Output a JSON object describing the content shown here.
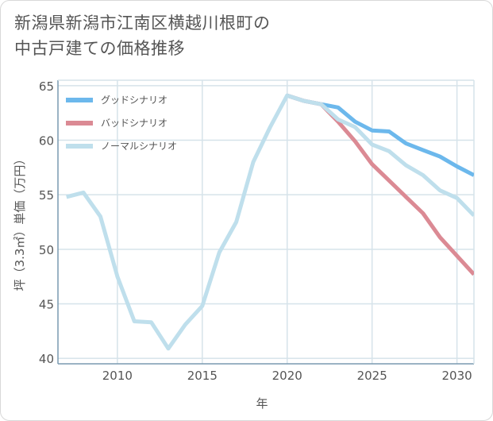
{
  "title": {
    "line1": "新潟県新潟市江南区横越川根町の",
    "line2": "中古戸建ての価格推移"
  },
  "colors": {
    "good": "#6cb8ec",
    "bad": "#db8a94",
    "normal": "#bfdfec",
    "grid": "#d6e3ea",
    "axis": "#7a9ab0",
    "text": "#555555"
  },
  "chart_data": {
    "type": "line",
    "title": "新潟県新潟市江南区横越川根町の中古戸建ての価格推移",
    "xlabel": "年",
    "ylabel": "坪（3.3㎡）単価（万円）",
    "xlim": [
      2006.5,
      2031
    ],
    "ylim": [
      39.5,
      65.5
    ],
    "xticks": [
      2010,
      2015,
      2020,
      2025,
      2030
    ],
    "yticks": [
      40,
      45,
      50,
      55,
      60,
      65
    ],
    "grid": true,
    "legend_position": "top-left",
    "series": [
      {
        "name": "グッドシナリオ",
        "color": "#6cb8ec",
        "points": [
          [
            2020,
            64.1
          ],
          [
            2021,
            63.6
          ],
          [
            2022,
            63.3
          ],
          [
            2023,
            63.0
          ],
          [
            2024,
            61.7
          ],
          [
            2025,
            60.9
          ],
          [
            2026,
            60.8
          ],
          [
            2027,
            59.7
          ],
          [
            2028,
            59.1
          ],
          [
            2029,
            58.5
          ],
          [
            2030,
            57.6
          ],
          [
            2031,
            56.8
          ]
        ]
      },
      {
        "name": "バッドシナリオ",
        "color": "#db8a94",
        "points": [
          [
            2020,
            64.1
          ],
          [
            2021,
            63.6
          ],
          [
            2022,
            63.3
          ],
          [
            2023,
            61.7
          ],
          [
            2024,
            59.9
          ],
          [
            2025,
            57.8
          ],
          [
            2026,
            56.3
          ],
          [
            2027,
            54.8
          ],
          [
            2028,
            53.3
          ],
          [
            2029,
            51.1
          ],
          [
            2030,
            49.4
          ],
          [
            2031,
            47.7
          ]
        ]
      },
      {
        "name": "ノーマルシナリオ",
        "color": "#bfdfec",
        "points": [
          [
            2007,
            54.8
          ],
          [
            2008,
            55.2
          ],
          [
            2009,
            53.0
          ],
          [
            2010,
            47.5
          ],
          [
            2011,
            43.4
          ],
          [
            2012,
            43.3
          ],
          [
            2013,
            40.9
          ],
          [
            2014,
            43.1
          ],
          [
            2015,
            44.8
          ],
          [
            2016,
            49.7
          ],
          [
            2017,
            52.5
          ],
          [
            2018,
            58.0
          ],
          [
            2019,
            61.2
          ],
          [
            2020,
            64.1
          ],
          [
            2021,
            63.6
          ],
          [
            2022,
            63.3
          ],
          [
            2023,
            61.9
          ],
          [
            2024,
            61.2
          ],
          [
            2025,
            59.6
          ],
          [
            2026,
            59.0
          ],
          [
            2027,
            57.7
          ],
          [
            2028,
            56.8
          ],
          [
            2029,
            55.4
          ],
          [
            2030,
            54.7
          ],
          [
            2031,
            53.1
          ]
        ]
      }
    ]
  }
}
